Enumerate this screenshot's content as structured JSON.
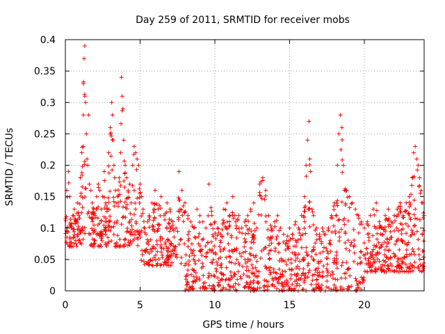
{
  "chart_data": {
    "type": "scatter",
    "title": "Day 259 of 2011, SRMTID for receiver mobs",
    "xlabel": "GPS time / hours",
    "ylabel": "SRMTID / TECUs",
    "xlim": [
      0,
      24
    ],
    "ylim": [
      0,
      0.4
    ],
    "xticks": [
      0,
      5,
      10,
      15,
      20
    ],
    "xtick_labels": [
      "0",
      "5",
      "10",
      "15",
      "20"
    ],
    "yticks": [
      0,
      0.05,
      0.1,
      0.15,
      0.2,
      0.25,
      0.3,
      0.35,
      0.4
    ],
    "ytick_labels": [
      "0",
      "0.05",
      "0.1",
      "0.15",
      "0.2",
      "0.25",
      "0.3",
      "0.35",
      "0.4"
    ],
    "grid": true,
    "marker": "+",
    "color": "#ff0000",
    "series": [
      {
        "name": "SRMTID",
        "note": "Dense scatter of ~1500 points; envelope points listed plus representative samples",
        "x": [
          0.1,
          0.2,
          0.3,
          0.4,
          0.5,
          0.6,
          0.7,
          0.8,
          0.9,
          1.0,
          1.1,
          1.2,
          1.2,
          1.25,
          1.3,
          1.3,
          1.35,
          1.4,
          1.45,
          1.5,
          1.55,
          1.6,
          1.7,
          1.8,
          1.9,
          2.0,
          2.1,
          2.2,
          2.3,
          2.4,
          2.5,
          2.6,
          2.7,
          2.8,
          2.9,
          3.0,
          3.1,
          3.15,
          3.2,
          3.25,
          3.3,
          3.35,
          3.4,
          3.5,
          3.6,
          3.7,
          3.75,
          3.8,
          3.85,
          3.9,
          4.0,
          4.1,
          4.2,
          4.3,
          4.4,
          4.5,
          4.6,
          4.7,
          4.8,
          4.9,
          5.0,
          5.1,
          5.2,
          5.3,
          5.4,
          5.5,
          5.6,
          5.8,
          6.0,
          6.2,
          6.4,
          6.6,
          6.8,
          7.0,
          7.2,
          7.4,
          7.6,
          7.8,
          8.0,
          8.2,
          8.4,
          8.6,
          8.8,
          9.0,
          9.2,
          9.4,
          9.6,
          9.8,
          10.0,
          10.2,
          10.4,
          10.6,
          10.8,
          11.0,
          11.2,
          11.4,
          11.6,
          11.8,
          12.0,
          12.2,
          12.4,
          12.6,
          12.8,
          13.0,
          13.2,
          13.4,
          13.6,
          13.8,
          14.0,
          14.2,
          14.4,
          14.6,
          14.8,
          15.0,
          15.2,
          15.4,
          15.6,
          15.8,
          16.0,
          16.1,
          16.2,
          16.3,
          16.35,
          16.4,
          16.5,
          16.6,
          16.8,
          17.0,
          17.2,
          17.4,
          17.6,
          17.8,
          18.0,
          18.2,
          18.3,
          18.4,
          18.5,
          18.6,
          18.8,
          19.0,
          19.2,
          19.4,
          19.6,
          19.8,
          20.0,
          20.2,
          20.4,
          20.6,
          20.8,
          21.0,
          21.2,
          21.4,
          21.6,
          21.8,
          22.0,
          22.2,
          22.4,
          22.6,
          22.8,
          23.0,
          23.2,
          23.3,
          23.4,
          23.5,
          23.6,
          23.7,
          23.8,
          23.9,
          24.0
        ],
        "y": [
          0.16,
          0.19,
          0.15,
          0.1,
          0.12,
          0.13,
          0.11,
          0.14,
          0.12,
          0.18,
          0.22,
          0.28,
          0.33,
          0.37,
          0.39,
          0.31,
          0.3,
          0.25,
          0.21,
          0.2,
          0.28,
          0.17,
          0.16,
          0.14,
          0.13,
          0.12,
          0.15,
          0.17,
          0.16,
          0.13,
          0.15,
          0.19,
          0.14,
          0.13,
          0.22,
          0.26,
          0.3,
          0.28,
          0.24,
          0.2,
          0.18,
          0.16,
          0.14,
          0.15,
          0.18,
          0.22,
          0.34,
          0.31,
          0.29,
          0.24,
          0.2,
          0.18,
          0.16,
          0.17,
          0.14,
          0.2,
          0.23,
          0.22,
          0.21,
          0.2,
          0.17,
          0.15,
          0.13,
          0.1,
          0.09,
          0.11,
          0.12,
          0.14,
          0.16,
          0.13,
          0.15,
          0.12,
          0.14,
          0.13,
          0.11,
          0.1,
          0.19,
          0.16,
          0.14,
          0.12,
          0.11,
          0.1,
          0.13,
          0.12,
          0.11,
          0.1,
          0.17,
          0.12,
          0.11,
          0.1,
          0.09,
          0.13,
          0.14,
          0.12,
          0.15,
          0.11,
          0.12,
          0.1,
          0.11,
          0.12,
          0.13,
          0.14,
          0.1,
          0.17,
          0.18,
          0.16,
          0.12,
          0.1,
          0.11,
          0.12,
          0.1,
          0.09,
          0.08,
          0.1,
          0.09,
          0.11,
          0.1,
          0.12,
          0.15,
          0.2,
          0.24,
          0.27,
          0.21,
          0.19,
          0.13,
          0.12,
          0.1,
          0.09,
          0.1,
          0.09,
          0.1,
          0.12,
          0.14,
          0.2,
          0.25,
          0.28,
          0.26,
          0.2,
          0.16,
          0.15,
          0.14,
          0.13,
          0.12,
          0.11,
          0.1,
          0.11,
          0.12,
          0.13,
          0.14,
          0.11,
          0.1,
          0.12,
          0.13,
          0.11,
          0.12,
          0.13,
          0.14,
          0.12,
          0.14,
          0.15,
          0.18,
          0.22,
          0.23,
          0.21,
          0.2,
          0.18,
          0.16,
          0.14,
          0.12
        ]
      }
    ]
  }
}
